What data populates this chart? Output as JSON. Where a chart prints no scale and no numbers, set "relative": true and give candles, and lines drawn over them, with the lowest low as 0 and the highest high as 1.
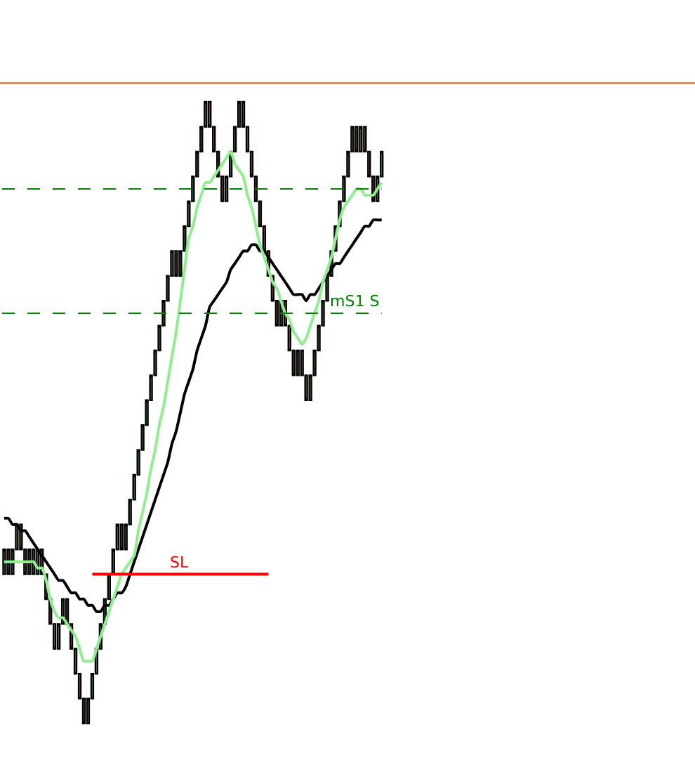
{
  "chart_data": {
    "type": "candlestick",
    "relative": true,
    "tick_labels": false,
    "legend": false,
    "categories": [
      null,
      null,
      null,
      null,
      null,
      null,
      null,
      null,
      null,
      null,
      null,
      null,
      null,
      null,
      null,
      null,
      null,
      null,
      null,
      null,
      null,
      null,
      null,
      null,
      null,
      null,
      null,
      null,
      null,
      null,
      null,
      null,
      null,
      null,
      null,
      null,
      null,
      null,
      null,
      null,
      null,
      null,
      null,
      null,
      null,
      null,
      null,
      null,
      null,
      null,
      null,
      null,
      null,
      null,
      null,
      null,
      null,
      null,
      null,
      null,
      null,
      null,
      null,
      null,
      null,
      null,
      null,
      null,
      null,
      null,
      null,
      null,
      null,
      null,
      null,
      null,
      null,
      null,
      null,
      null,
      null,
      null,
      null,
      null,
      null,
      null,
      null,
      null,
      null,
      null,
      null
    ],
    "ohlc": [
      [
        0.24,
        0.28,
        0.24,
        0.28
      ],
      [
        0.28,
        0.28,
        0.24,
        0.24
      ],
      [
        0.24,
        0.28,
        0.24,
        0.28
      ],
      [
        0.28,
        0.32,
        0.28,
        0.32
      ],
      [
        0.32,
        0.32,
        0.28,
        0.28
      ],
      [
        0.28,
        0.28,
        0.24,
        0.24
      ],
      [
        0.24,
        0.28,
        0.24,
        0.28
      ],
      [
        0.28,
        0.28,
        0.24,
        0.24
      ],
      [
        0.24,
        0.28,
        0.24,
        0.28
      ],
      [
        0.28,
        0.28,
        0.24,
        0.24
      ],
      [
        0.24,
        0.24,
        0.2,
        0.2
      ],
      [
        0.2,
        0.2,
        0.16,
        0.16
      ],
      [
        0.16,
        0.16,
        0.12,
        0.12
      ],
      [
        0.12,
        0.16,
        0.12,
        0.16
      ],
      [
        0.16,
        0.2,
        0.16,
        0.2
      ],
      [
        0.2,
        0.2,
        0.16,
        0.16
      ],
      [
        0.16,
        0.16,
        0.12,
        0.12
      ],
      [
        0.12,
        0.12,
        0.08,
        0.08
      ],
      [
        0.08,
        0.08,
        0.04,
        0.04
      ],
      [
        0.04,
        0.04,
        0,
        0
      ],
      [
        0,
        0.04,
        0,
        0.04
      ],
      [
        0.04,
        0.08,
        0.04,
        0.08
      ],
      [
        0.08,
        0.12,
        0.08,
        0.12
      ],
      [
        0.12,
        0.16,
        0.12,
        0.16
      ],
      [
        0.16,
        0.2,
        0.16,
        0.2
      ],
      [
        0.2,
        0.24,
        0.2,
        0.24
      ],
      [
        0.24,
        0.28,
        0.24,
        0.28
      ],
      [
        0.28,
        0.32,
        0.28,
        0.32
      ],
      [
        0.32,
        0.32,
        0.28,
        0.28
      ],
      [
        0.28,
        0.32,
        0.28,
        0.32
      ],
      [
        0.32,
        0.36,
        0.32,
        0.36
      ],
      [
        0.36,
        0.4,
        0.36,
        0.4
      ],
      [
        0.4,
        0.44,
        0.4,
        0.44
      ],
      [
        0.44,
        0.48,
        0.44,
        0.48
      ],
      [
        0.48,
        0.52,
        0.48,
        0.52
      ],
      [
        0.52,
        0.56,
        0.52,
        0.56
      ],
      [
        0.56,
        0.6,
        0.56,
        0.6
      ],
      [
        0.6,
        0.64,
        0.6,
        0.64
      ],
      [
        0.64,
        0.68,
        0.64,
        0.68
      ],
      [
        0.68,
        0.72,
        0.68,
        0.72
      ],
      [
        0.72,
        0.76,
        0.72,
        0.76
      ],
      [
        0.76,
        0.76,
        0.72,
        0.72
      ],
      [
        0.72,
        0.76,
        0.72,
        0.76
      ],
      [
        0.76,
        0.8,
        0.76,
        0.8
      ],
      [
        0.8,
        0.84,
        0.8,
        0.84
      ],
      [
        0.84,
        0.88,
        0.84,
        0.88
      ],
      [
        0.88,
        0.92,
        0.88,
        0.92
      ],
      [
        0.92,
        0.96,
        0.92,
        0.96
      ],
      [
        0.96,
        1,
        0.96,
        1
      ],
      [
        1,
        1,
        0.96,
        0.96
      ],
      [
        0.96,
        0.96,
        0.92,
        0.92
      ],
      [
        0.92,
        0.92,
        0.88,
        0.88
      ],
      [
        0.88,
        0.88,
        0.84,
        0.84
      ],
      [
        0.84,
        0.88,
        0.84,
        0.88
      ],
      [
        0.88,
        0.92,
        0.88,
        0.92
      ],
      [
        0.92,
        0.96,
        0.92,
        0.96
      ],
      [
        0.96,
        1,
        0.96,
        1
      ],
      [
        1,
        1,
        0.96,
        0.96
      ],
      [
        0.96,
        0.96,
        0.92,
        0.92
      ],
      [
        0.92,
        0.92,
        0.88,
        0.88
      ],
      [
        0.88,
        0.88,
        0.84,
        0.84
      ],
      [
        0.84,
        0.84,
        0.8,
        0.8
      ],
      [
        0.8,
        0.8,
        0.76,
        0.76
      ],
      [
        0.76,
        0.76,
        0.72,
        0.72
      ],
      [
        0.72,
        0.72,
        0.68,
        0.68
      ],
      [
        0.68,
        0.68,
        0.64,
        0.64
      ],
      [
        0.64,
        0.68,
        0.64,
        0.68
      ],
      [
        0.68,
        0.68,
        0.64,
        0.64
      ],
      [
        0.64,
        0.64,
        0.6,
        0.6
      ],
      [
        0.6,
        0.6,
        0.56,
        0.56
      ],
      [
        0.56,
        0.6,
        0.56,
        0.6
      ],
      [
        0.6,
        0.6,
        0.56,
        0.56
      ],
      [
        0.56,
        0.56,
        0.52,
        0.52
      ],
      [
        0.52,
        0.56,
        0.52,
        0.56
      ],
      [
        0.56,
        0.6,
        0.56,
        0.6
      ],
      [
        0.6,
        0.64,
        0.6,
        0.64
      ],
      [
        0.64,
        0.68,
        0.64,
        0.68
      ],
      [
        0.68,
        0.72,
        0.68,
        0.72
      ],
      [
        0.72,
        0.76,
        0.72,
        0.76
      ],
      [
        0.76,
        0.8,
        0.76,
        0.8
      ],
      [
        0.8,
        0.84,
        0.8,
        0.84
      ],
      [
        0.84,
        0.88,
        0.84,
        0.88
      ],
      [
        0.88,
        0.92,
        0.88,
        0.92
      ],
      [
        0.92,
        0.96,
        0.92,
        0.96
      ],
      [
        0.96,
        0.96,
        0.92,
        0.92
      ],
      [
        0.92,
        0.96,
        0.92,
        0.96
      ],
      [
        0.96,
        0.96,
        0.92,
        0.92
      ],
      [
        0.92,
        0.92,
        0.88,
        0.88
      ],
      [
        0.88,
        0.88,
        0.84,
        0.84
      ],
      [
        0.84,
        0.88,
        0.84,
        0.88
      ],
      [
        0.88,
        0.92,
        0.88,
        0.92
      ]
    ],
    "colors": [
      "#5ed35e",
      "#e57373",
      "#5ed35e",
      "#5ed35e",
      "#e57373",
      "#e57373",
      "#5ed35e",
      "#e57373",
      "#5ed35e",
      "#e57373",
      "#e57373",
      "#e57373",
      "#e57373",
      "#5ed35e",
      "#5ed35e",
      "#e57373",
      "#e57373",
      "#e57373",
      "#e57373",
      "#e57373",
      "#5ed35e",
      "#5ed35e",
      "#5ed35e",
      "#5ed35e",
      "#5ed35e",
      "#5ed35e",
      "#5ed35e",
      "#5ed35e",
      "#e57373",
      "#5ed35e",
      "#5ed35e",
      "#5ed35e",
      "#5ed35e",
      "#5ed35e",
      "#5ed35e",
      "#5ed35e",
      "#5ed35e",
      "#5ed35e",
      "#5ed35e",
      "#5ed35e",
      "#5ed35e",
      "#e57373",
      "#5ed35e",
      "#5ed35e",
      "#5ed35e",
      "#5ed35e",
      "#5ed35e",
      "#5ed35e",
      "#5ed35e",
      "#e57373",
      "#e57373",
      "#e57373",
      "#e57373",
      "#5ed35e",
      "#5ed35e",
      "#5ed35e",
      "#5ed35e",
      "#e57373",
      "#e57373",
      "#e57373",
      "#e57373",
      "#e57373",
      "#e57373",
      "#e57373",
      "#e57373",
      "#e57373",
      "#5ed35e",
      "#e57373",
      "#e57373",
      "#e57373",
      "#5ed35e",
      "#e57373",
      "#e57373",
      "#5ed35e",
      "#5ed35e",
      "#5ed35e",
      "#5ed35e",
      "#5ed35e",
      "#5ed35e",
      "#5ed35e",
      "#5ed35e",
      "#5ed35e",
      "#5ed35e",
      "#5ed35e",
      "#e57373",
      "#5ed35e",
      "#e57373",
      "#e57373",
      "#e57373",
      "#5ed35e",
      "#5ed35e"
    ],
    "series": [
      {
        "type": "line",
        "color": "#000000",
        "values": [
          0.33,
          0.33,
          0.32,
          0.32,
          0.31,
          0.31,
          0.3,
          0.29,
          0.28,
          0.27,
          0.26,
          0.25,
          0.24,
          0.23,
          0.23,
          0.22,
          0.21,
          0.21,
          0.2,
          0.2,
          0.19,
          0.19,
          0.18,
          0.18,
          0.19,
          0.19,
          0.2,
          0.21,
          0.21,
          0.22,
          0.24,
          0.26,
          0.28,
          0.3,
          0.32,
          0.34,
          0.36,
          0.38,
          0.4,
          0.42,
          0.45,
          0.47,
          0.5,
          0.53,
          0.55,
          0.57,
          0.6,
          0.62,
          0.64,
          0.67,
          0.68,
          0.69,
          0.7,
          0.71,
          0.73,
          0.74,
          0.75,
          0.76,
          0.76,
          0.77,
          0.77,
          0.76,
          0.76,
          0.75,
          0.74,
          0.73,
          0.72,
          0.71,
          0.7,
          0.69,
          0.69,
          0.69,
          0.68,
          0.69,
          0.69,
          0.7,
          0.71,
          0.72,
          0.73,
          0.74,
          0.74,
          0.75,
          0.76,
          0.77,
          0.78,
          0.79,
          0.8,
          0.8,
          0.81,
          0.81,
          0.81
        ]
      },
      {
        "type": "line",
        "color": "#90ee90",
        "values": [
          0.26,
          0.26,
          0.26,
          0.26,
          0.26,
          0.26,
          0.26,
          0.26,
          0.25,
          0.25,
          0.23,
          0.2,
          0.18,
          0.17,
          0.17,
          0.16,
          0.15,
          0.14,
          0.12,
          0.1,
          0.1,
          0.1,
          0.12,
          0.14,
          0.16,
          0.18,
          0.2,
          0.22,
          0.24,
          0.25,
          0.26,
          0.27,
          0.31,
          0.34,
          0.37,
          0.41,
          0.44,
          0.48,
          0.51,
          0.55,
          0.59,
          0.63,
          0.68,
          0.73,
          0.78,
          0.8,
          0.83,
          0.85,
          0.87,
          0.87,
          0.88,
          0.89,
          0.9,
          0.91,
          0.92,
          0.9,
          0.89,
          0.88,
          0.85,
          0.83,
          0.8,
          0.77,
          0.75,
          0.73,
          0.71,
          0.7,
          0.68,
          0.66,
          0.65,
          0.63,
          0.62,
          0.61,
          0.62,
          0.64,
          0.66,
          0.68,
          0.71,
          0.73,
          0.75,
          0.78,
          0.81,
          0.83,
          0.84,
          0.85,
          0.86,
          0.86,
          0.85,
          0.85,
          0.85,
          0.86,
          0.87
        ]
      },
      {
        "type": "line",
        "name": "SL",
        "color": "#ff0000",
        "values": [
          null,
          null,
          null,
          null,
          null,
          null,
          null,
          null,
          null,
          null,
          null,
          null,
          null,
          null,
          null,
          null,
          null,
          null,
          null,
          null,
          null,
          0.24,
          0.24,
          0.24,
          0.24,
          0.24,
          0.24,
          0.24,
          0.24,
          0.24,
          0.24,
          0.24,
          0.24,
          0.24,
          0.24,
          0.24,
          0.24,
          0.24,
          0.24,
          0.24,
          0.24,
          0.24,
          0.24,
          0.24,
          0.24,
          0.24,
          0.24,
          0.24,
          0.24,
          0.24,
          0.24,
          0.24,
          0.24,
          0.24,
          0.24,
          0.24,
          0.24,
          0.24,
          0.24,
          0.24,
          0.24,
          0.24,
          0.24,
          0.24,
          null,
          null,
          null,
          null,
          null,
          null,
          null,
          null,
          null,
          null,
          null,
          null,
          null,
          null,
          null,
          null,
          null,
          null,
          null,
          null,
          null,
          null,
          null,
          null,
          null,
          null,
          null
        ]
      }
    ],
    "ref_lines": [
      {
        "axis": "y",
        "value": 1.03,
        "color": "#ff7f3f",
        "line_style": "solid"
      },
      {
        "axis": "y",
        "value": 0.86,
        "color": "#008000",
        "line_style": "dashed"
      },
      {
        "axis": "y",
        "value": 0.66,
        "color": "#008000",
        "line_style": "dashed",
        "label": "mS1 S"
      }
    ]
  }
}
